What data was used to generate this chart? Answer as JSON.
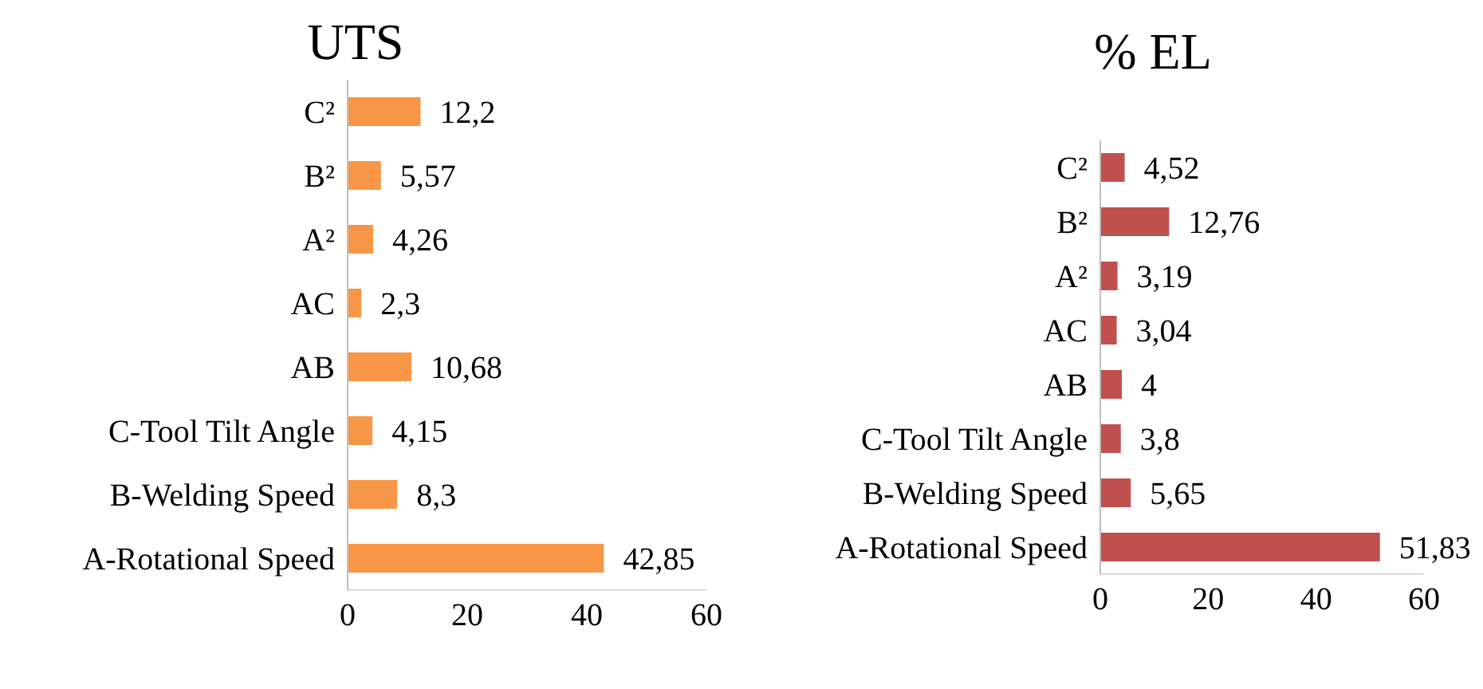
{
  "chart_data": [
    {
      "type": "bar",
      "orientation": "horizontal",
      "title": "UTS",
      "categories": [
        "C²",
        "B²",
        "A²",
        "AC",
        "AB",
        "C-Tool Tilt Angle",
        "B-Welding Speed",
        "A-Rotational Speed"
      ],
      "values": [
        12.2,
        5.57,
        4.26,
        2.3,
        10.68,
        4.15,
        8.3,
        42.85
      ],
      "value_labels": [
        "12,2",
        "5,57",
        "4,26",
        "2,3",
        "10,68",
        "4,15",
        "8,3",
        "42,85"
      ],
      "color": "#f79646",
      "xlim": [
        0,
        60
      ],
      "xticks": [
        0,
        20,
        40,
        60
      ],
      "grid": false,
      "legend": false
    },
    {
      "type": "bar",
      "orientation": "horizontal",
      "title": "% EL",
      "categories": [
        "C²",
        "B²",
        "A²",
        "AC",
        "AB",
        "C-Tool Tilt Angle",
        "B-Welding Speed",
        "A-Rotational Speed"
      ],
      "values": [
        4.52,
        12.76,
        3.19,
        3.04,
        4,
        3.8,
        5.65,
        51.83
      ],
      "value_labels": [
        "4,52",
        "12,76",
        "3,19",
        "3,04",
        "4",
        "3,8",
        "5,65",
        "51,83"
      ],
      "color": "#c0504d",
      "xlim": [
        0,
        60
      ],
      "xticks": [
        0,
        20,
        40,
        60
      ],
      "grid": false,
      "legend": false
    }
  ]
}
